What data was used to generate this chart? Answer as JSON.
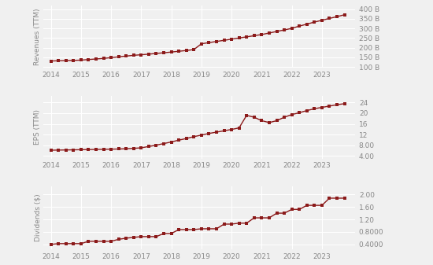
{
  "revenue": {
    "dates": [
      2014.0,
      2014.25,
      2014.5,
      2014.75,
      2015.0,
      2015.25,
      2015.5,
      2015.75,
      2016.0,
      2016.25,
      2016.5,
      2016.75,
      2017.0,
      2017.25,
      2017.5,
      2017.75,
      2018.0,
      2018.25,
      2018.5,
      2018.75,
      2019.0,
      2019.25,
      2019.5,
      2019.75,
      2020.0,
      2020.25,
      2020.5,
      2020.75,
      2021.0,
      2021.25,
      2021.5,
      2021.75,
      2022.0,
      2022.25,
      2022.5,
      2022.75,
      2023.0,
      2023.25,
      2023.5,
      2023.75
    ],
    "values": [
      130.5,
      131.5,
      132.5,
      133.5,
      135.0,
      138.0,
      141.0,
      144.0,
      148.0,
      152.0,
      156.0,
      160.0,
      163.0,
      166.0,
      170.0,
      173.0,
      177.0,
      181.0,
      185.0,
      190.0,
      220.0,
      226.0,
      232.0,
      238.0,
      244.0,
      250.0,
      256.0,
      262.0,
      268.0,
      276.0,
      284.0,
      292.0,
      300.0,
      312.0,
      322.0,
      333.0,
      342.0,
      352.0,
      361.0,
      371.0
    ],
    "yticks": [
      100,
      150,
      200,
      250,
      300,
      350,
      400
    ],
    "ytick_labels": [
      "100 B",
      "150 B",
      "200 B",
      "250 B",
      "300 B",
      "350 B",
      "400 B"
    ],
    "ylim": [
      95,
      420
    ],
    "ylabel": "Revenues (TTM)",
    "scale": 1000000000.0
  },
  "eps": {
    "dates": [
      2014.0,
      2014.25,
      2014.5,
      2014.75,
      2015.0,
      2015.25,
      2015.5,
      2015.75,
      2016.0,
      2016.25,
      2016.5,
      2016.75,
      2017.0,
      2017.25,
      2017.5,
      2017.75,
      2018.0,
      2018.25,
      2018.5,
      2018.75,
      2019.0,
      2019.25,
      2019.5,
      2019.75,
      2020.0,
      2020.25,
      2020.5,
      2020.75,
      2021.0,
      2021.25,
      2021.5,
      2021.75,
      2022.0,
      2022.25,
      2022.5,
      2022.75,
      2023.0,
      2023.25,
      2023.5,
      2023.75
    ],
    "values": [
      6.1,
      6.15,
      6.2,
      6.25,
      6.3,
      6.35,
      6.4,
      6.45,
      6.5,
      6.55,
      6.65,
      6.8,
      7.0,
      7.5,
      8.0,
      8.6,
      9.2,
      9.9,
      10.5,
      11.2,
      11.8,
      12.4,
      12.9,
      13.4,
      13.9,
      14.5,
      19.2,
      18.5,
      17.2,
      16.5,
      17.2,
      18.5,
      19.5,
      20.2,
      21.0,
      21.7,
      22.2,
      22.7,
      23.2,
      23.6
    ],
    "yticks": [
      4.0,
      8.0,
      12.0,
      16.0,
      20.0,
      24.0
    ],
    "ytick_labels": [
      "4.00",
      "8.00",
      "12",
      "16",
      "20",
      "24"
    ],
    "ylim": [
      3.0,
      26.5
    ],
    "ylabel": "EPS (TTM)",
    "scale": 1
  },
  "dividends": {
    "dates": [
      2014.0,
      2014.25,
      2014.5,
      2014.75,
      2015.0,
      2015.25,
      2015.5,
      2015.75,
      2016.0,
      2016.25,
      2016.5,
      2016.75,
      2017.0,
      2017.25,
      2017.5,
      2017.75,
      2018.0,
      2018.25,
      2018.5,
      2018.75,
      2019.0,
      2019.25,
      2019.5,
      2019.75,
      2020.0,
      2020.25,
      2020.5,
      2020.75,
      2021.0,
      2021.25,
      2021.5,
      2021.75,
      2022.0,
      2022.25,
      2022.5,
      2022.75,
      2023.0,
      2023.25,
      2023.5,
      2023.75
    ],
    "values": [
      0.4,
      0.425,
      0.425,
      0.425,
      0.425,
      0.5,
      0.5,
      0.5,
      0.5,
      0.5625,
      0.6,
      0.625,
      0.65,
      0.65,
      0.65,
      0.75,
      0.75,
      0.875,
      0.875,
      0.875,
      0.9,
      0.9,
      0.9,
      1.05,
      1.05,
      1.08,
      1.08,
      1.25,
      1.25,
      1.25,
      1.4,
      1.4,
      1.52,
      1.52,
      1.65,
      1.65,
      1.65,
      1.88,
      1.88,
      1.88
    ],
    "yticks": [
      0.4,
      0.8,
      1.2,
      1.6,
      2.0
    ],
    "ytick_labels": [
      "0.4000",
      "0.8000",
      "1.20",
      "1.60",
      "2.00"
    ],
    "ylim": [
      0.25,
      2.25
    ],
    "ylabel": "Dividends ($)",
    "scale": 1
  },
  "line_color": "#8B1A1A",
  "marker_size": 2.2,
  "line_width": 1.0,
  "bg_color": "#f0f0f0",
  "grid_color": "#ffffff",
  "xticks": [
    2014,
    2015,
    2016,
    2017,
    2018,
    2019,
    2020,
    2021,
    2022,
    2023
  ],
  "tick_fontsize": 6.5,
  "ylabel_fontsize": 6.5
}
